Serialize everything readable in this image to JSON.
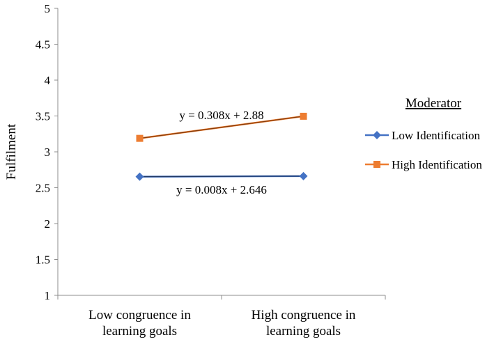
{
  "chart_data": {
    "type": "line",
    "ylabel": "Fulfilment",
    "ylim": [
      1,
      5
    ],
    "yticks": [
      "1",
      "1.5",
      "2",
      "2.5",
      "3",
      "3.5",
      "4",
      "4.5",
      "5"
    ],
    "categories": [
      [
        "Low congruence in",
        "learning goals"
      ],
      [
        "High congruence in",
        "learning goals"
      ]
    ],
    "legend_title": "Moderator",
    "legend_position": "right",
    "grid": false,
    "series": [
      {
        "name": "Low Identification",
        "color": "#4472C4",
        "marker": "diamond",
        "values": [
          2.654,
          2.662
        ],
        "trendline_label": "y = 0.008x + 2.646",
        "trendline_color": "#1F3864"
      },
      {
        "name": "High Identification",
        "color": "#ED7D31",
        "marker": "square",
        "values": [
          3.188,
          3.496
        ],
        "trendline_label": "y = 0.308x + 2.88",
        "trendline_color": "#843C0C"
      }
    ]
  }
}
